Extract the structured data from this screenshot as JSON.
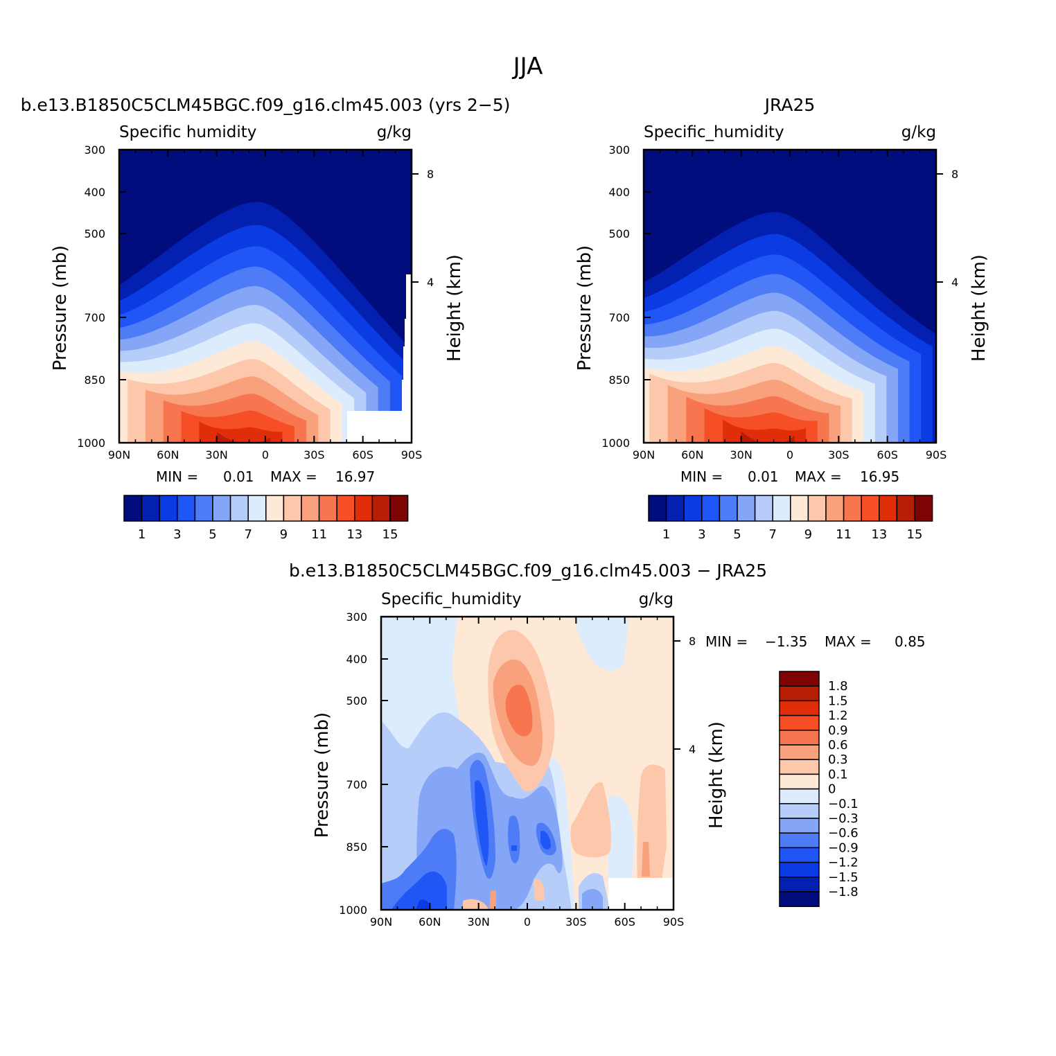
{
  "title": "JJA",
  "colors": {
    "abs": [
      "#010c7d",
      "#0420b0",
      "#0b3be3",
      "#1f56f5",
      "#4d7cf6",
      "#85a5f6",
      "#b7cdf9",
      "#dcecfc",
      "#fee8d6",
      "#fcc7ab",
      "#f9a07c",
      "#f77650",
      "#f64e25",
      "#e02e0a",
      "#b61f06",
      "#7e0404"
    ],
    "diff": [
      "#010c7d",
      "#0420b0",
      "#0b3be3",
      "#1f56f5",
      "#4d7cf6",
      "#85a5f6",
      "#b7cdf9",
      "#dcecfc",
      "#fee8d6",
      "#fcc7ab",
      "#f9a07c",
      "#f77650",
      "#f64e25",
      "#e02e0a",
      "#b61f06",
      "#7e0404"
    ],
    "missing": "#ffffff"
  },
  "axes": {
    "xticks": [
      "90N",
      "60N",
      "30N",
      "0",
      "30S",
      "60S",
      "90S"
    ],
    "yticks": [
      "300",
      "400",
      "500",
      "700",
      "850",
      "1000"
    ],
    "height_ticks": [
      "8",
      "4"
    ],
    "ylabel": "Pressure (mb)",
    "ylabel_right": "Height (km)"
  },
  "panels": [
    {
      "title": "b.e13.B1850C5CLM45BGC.f09_g16.clm45.003 (yrs 2−5)",
      "left_label": "Specific humidity",
      "right_label": "g/kg",
      "min_label": "MIN = ",
      "min_value": "0.01",
      "max_label": "MAX = ",
      "max_value": "16.97",
      "colorbar_labels": [
        "1",
        "3",
        "5",
        "7",
        "9",
        "11",
        "13",
        "15"
      ]
    },
    {
      "title": "JRA25",
      "left_label": "Specific_humidity",
      "right_label": "g/kg",
      "min_label": "MIN = ",
      "min_value": "0.01",
      "max_label": "MAX = ",
      "max_value": "16.95",
      "colorbar_labels": [
        "1",
        "3",
        "5",
        "7",
        "9",
        "11",
        "13",
        "15"
      ]
    },
    {
      "title": "b.e13.B1850C5CLM45BGC.f09_g16.clm45.003 − JRA25",
      "left_label": "Specific_humidity",
      "right_label": "g/kg",
      "min_label": "MIN = ",
      "min_value": "−1.35",
      "max_label": "MAX = ",
      "max_value": "0.85",
      "colorbar_labels": [
        "1.8",
        "1.5",
        "1.2",
        "0.9",
        "0.6",
        "0.3",
        "0.1",
        "0",
        "−0.1",
        "−0.3",
        "−0.6",
        "−0.9",
        "−1.2",
        "−1.5",
        "−1.8"
      ]
    }
  ],
  "chart_data": [
    {
      "type": "heatmap",
      "title": "b.e13.B1850C5CLM45BGC.f09_g16.clm45.003 (yrs 2−5)",
      "variable": "Specific humidity",
      "units": "g/kg",
      "x": [
        90,
        60,
        30,
        0,
        -30,
        -60,
        -90
      ],
      "xlabels": [
        "90N",
        "60N",
        "30N",
        "0",
        "30S",
        "60S",
        "90S"
      ],
      "pressure_levels": [
        300,
        400,
        500,
        700,
        850,
        1000
      ],
      "contour_levels": [
        1,
        2,
        3,
        4,
        5,
        6,
        7,
        8,
        9,
        10,
        11,
        12,
        13,
        14,
        15
      ],
      "max_location": {
        "lat": -8,
        "pressure": 1000
      },
      "min": 0.01,
      "max": 16.97
    },
    {
      "type": "heatmap",
      "title": "JRA25",
      "variable": "Specific_humidity",
      "units": "g/kg",
      "x": [
        90,
        60,
        30,
        0,
        -30,
        -60,
        -90
      ],
      "xlabels": [
        "90N",
        "60N",
        "30N",
        "0",
        "30S",
        "60S",
        "90S"
      ],
      "pressure_levels": [
        300,
        400,
        500,
        700,
        850,
        1000
      ],
      "contour_levels": [
        1,
        2,
        3,
        4,
        5,
        6,
        7,
        8,
        9,
        10,
        11,
        12,
        13,
        14,
        15
      ],
      "max_location": {
        "lat": -10,
        "pressure": 1000
      },
      "min": 0.01,
      "max": 16.95
    },
    {
      "type": "heatmap",
      "title": "b.e13.B1850C5CLM45BGC.f09_g16.clm45.003 − JRA25",
      "variable": "Specific_humidity",
      "units": "g/kg",
      "x": [
        90,
        60,
        30,
        0,
        -30,
        -60,
        -90
      ],
      "xlabels": [
        "90N",
        "60N",
        "30N",
        "0",
        "30S",
        "60S",
        "90S"
      ],
      "pressure_levels": [
        300,
        400,
        500,
        700,
        850,
        1000
      ],
      "contour_levels": [
        -1.8,
        -1.5,
        -1.2,
        -0.9,
        -0.6,
        -0.3,
        -0.1,
        0,
        0.1,
        0.3,
        0.6,
        0.9,
        1.2,
        1.5,
        1.8
      ],
      "features": [
        {
          "lat": -6,
          "pressure": 520,
          "value": 0.85,
          "kind": "max"
        },
        {
          "lat": 30,
          "pressure": 780,
          "value": -1.35,
          "kind": "min"
        },
        {
          "lat": 72,
          "pressure": 960,
          "value": -1.1,
          "kind": "local_min"
        },
        {
          "lat": -8,
          "pressure": 820,
          "value": -1.0,
          "kind": "local_min"
        },
        {
          "lat": -78,
          "pressure": 780,
          "value": 0.4,
          "kind": "local_max"
        }
      ],
      "min": -1.35,
      "max": 0.85
    }
  ]
}
